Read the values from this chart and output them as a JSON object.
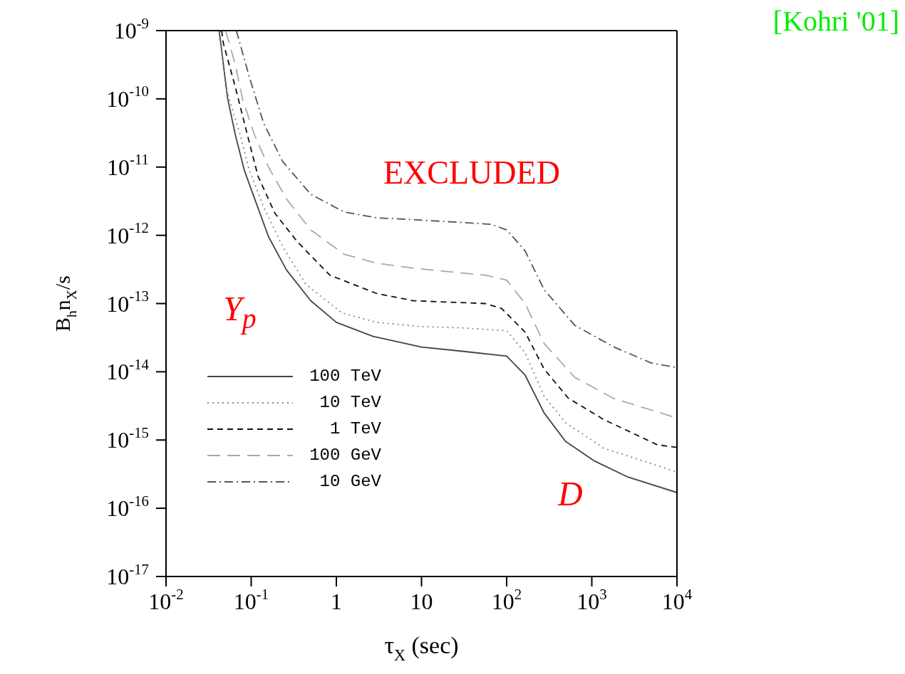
{
  "chart_data": {
    "type": "line",
    "xlabel": "τ$_{X}$ (sec)",
    "ylabel": "B$_{h}$n$_{X}$/s",
    "log": "xy",
    "legend": "bottom left",
    "marker": "none",
    "xlim": [
      0.01,
      10000
    ],
    "xticks": [
      {
        "value": 0.01,
        "label": "10$^{-2}$"
      },
      {
        "value": 0.1,
        "label": "10$^{-1}$"
      },
      1,
      10,
      {
        "value": 100,
        "label": "10$^{2}$"
      },
      {
        "value": 1000,
        "label": "10$^{3}$"
      },
      {
        "value": 10000,
        "label": "10$^{4}$"
      }
    ],
    "ylim": [
      1e-17,
      1e-09
    ],
    "yticks": [
      {
        "value": 1e-17,
        "label": "10$^{-17}$"
      },
      {
        "value": 1e-16,
        "label": "10$^{-16}$"
      },
      {
        "value": 1e-15,
        "label": "10$^{-15}$"
      },
      {
        "value": 1e-14,
        "label": "10$^{-14}$"
      },
      {
        "value": 1e-13,
        "label": "10$^{-13}$"
      },
      {
        "value": 1e-12,
        "label": "10$^{-12}$"
      },
      {
        "value": 1e-11,
        "label": "10$^{-11}$"
      },
      {
        "value": 1e-10,
        "label": "10$^{-10}$"
      },
      {
        "value": 1e-09,
        "label": "10$^{-9}$"
      }
    ],
    "series": [
      {
        "name": "100 TeV",
        "color": "#444444",
        "line_style": "solid",
        "x": [
          0.042,
          0.053,
          0.065,
          0.083,
          0.105,
          0.16,
          0.26,
          0.5,
          1,
          2.7,
          10,
          30,
          100,
          165,
          275,
          490,
          1050,
          2600,
          10000
        ],
        "values": [
          1e-09,
          1e-10,
          3e-11,
          9e-12,
          4e-12,
          9.5e-13,
          3.1e-13,
          1.1e-13,
          5.3e-14,
          3.3e-14,
          2.3e-14,
          2e-14,
          1.7e-14,
          8.9e-15,
          2.5e-15,
          9.6e-16,
          5e-16,
          2.9e-16,
          1.7e-16
        ]
      },
      {
        "name": "10 TeV",
        "color": "#888888",
        "line_style": "dotted",
        "x": [
          0.043,
          0.05,
          0.074,
          0.095,
          0.14,
          0.235,
          0.44,
          1.16,
          3,
          10,
          30,
          100,
          165,
          275,
          490,
          1380,
          10000
        ],
        "values": [
          1e-09,
          1.5e-10,
          3e-11,
          9e-12,
          2.6e-12,
          6.8e-13,
          1.9e-13,
          7.3e-14,
          5.3e-14,
          4.6e-14,
          4.4e-14,
          4e-14,
          1.9e-14,
          4.4e-15,
          1.8e-15,
          7.6e-16,
          3.4e-16
        ]
      },
      {
        "name": "1 TeV",
        "color": "#111111",
        "line_style": "dashed",
        "x": [
          0.045,
          0.047,
          0.065,
          0.09,
          0.12,
          0.19,
          0.35,
          0.84,
          3,
          8,
          56,
          87,
          165,
          275,
          530,
          1380,
          5900,
          10000
        ],
        "values": [
          1e-09,
          6.6e-10,
          1.5e-10,
          3e-11,
          7.4e-12,
          2.1e-12,
          8e-13,
          2.6e-13,
          1.4e-13,
          1.1e-13,
          1e-13,
          8.5e-14,
          3.8e-14,
          1.1e-14,
          4.1e-15,
          2e-15,
          8.5e-16,
          7.8e-16
        ]
      },
      {
        "name": "100 GeV",
        "color": "#aaaaaa",
        "line_style": "longdash",
        "x": [
          0.05,
          0.065,
          0.079,
          0.109,
          0.16,
          0.26,
          0.5,
          1.23,
          3,
          8,
          56,
          100,
          165,
          275,
          630,
          1780,
          10000
        ],
        "values": [
          1e-09,
          3.2e-10,
          1e-10,
          3e-11,
          1e-11,
          3.4e-12,
          1.2e-12,
          5.3e-13,
          3.9e-13,
          3.3e-13,
          2.6e-13,
          2.2e-13,
          1e-13,
          2.6e-14,
          8.3e-15,
          4.1e-15,
          2.1e-15
        ]
      },
      {
        "name": "10 GeV",
        "color": "#555555",
        "line_style": "dashdot",
        "x": [
          0.067,
          0.095,
          0.14,
          0.235,
          0.5,
          1.23,
          3,
          8,
          66,
          100,
          165,
          275,
          630,
          1830,
          4950,
          10000
        ],
        "values": [
          1e-09,
          2.1e-10,
          4.4e-11,
          1.2e-11,
          4e-12,
          2.2e-12,
          1.8e-12,
          1.7e-12,
          1.45e-12,
          1.2e-12,
          5.9e-13,
          1.6e-13,
          4.8e-14,
          2.3e-14,
          1.35e-14,
          1.15e-14
        ]
      }
    ],
    "annotations": [
      "EXCLUDED",
      "Y$_{p}$",
      "D",
      "[Kohri '01]"
    ]
  }
}
